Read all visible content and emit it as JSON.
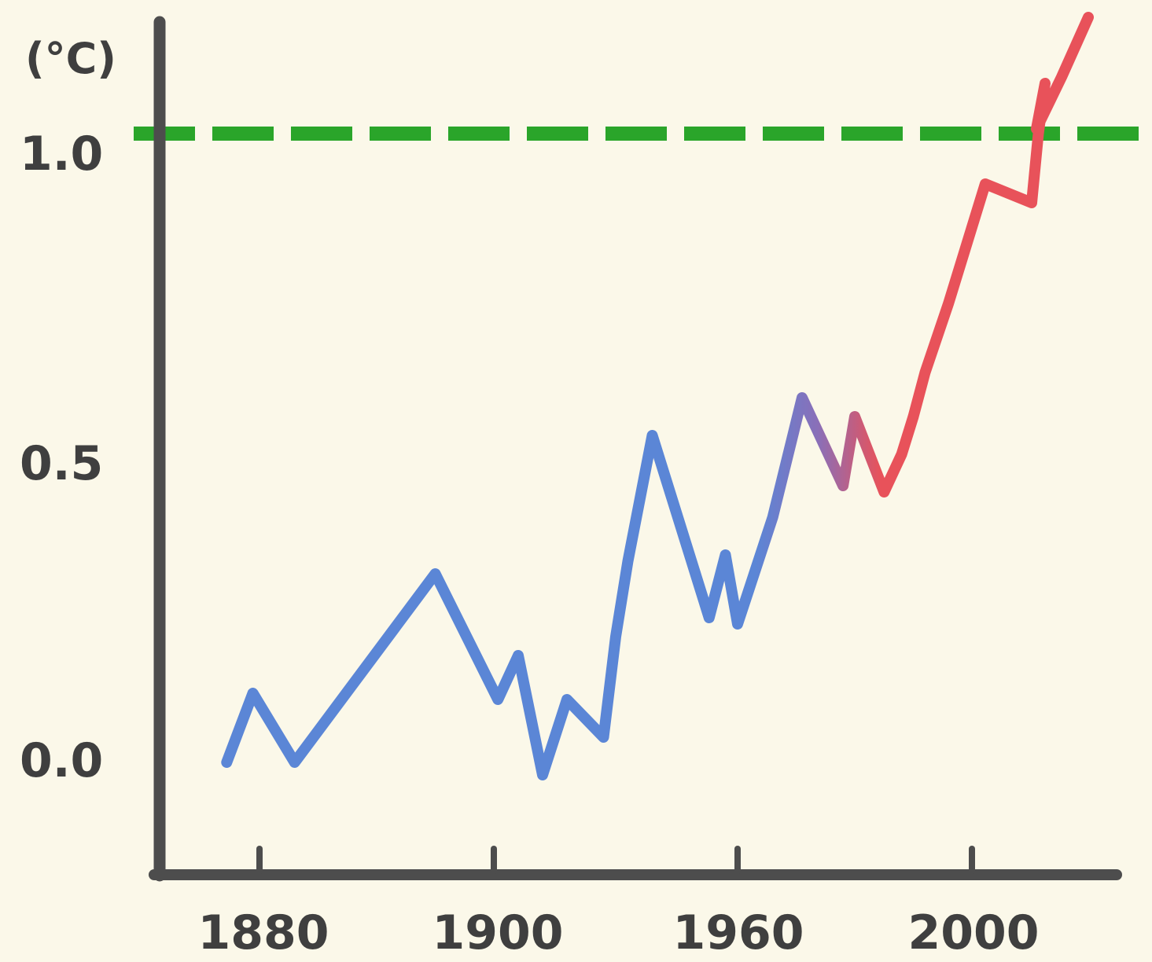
{
  "chart_data": {
    "type": "line",
    "title": "",
    "xlabel": "",
    "ylabel": "(°C)",
    "x_ticks": [
      1880,
      1900,
      1960,
      2000
    ],
    "x_tick_labels": [
      "1880",
      "1900",
      "1960",
      "2000"
    ],
    "y_ticks": [
      0.0,
      0.5,
      1.0
    ],
    "y_tick_labels": [
      "0.0",
      "0.5",
      "1.0"
    ],
    "ylim": [
      -0.17,
      1.2
    ],
    "grid": false,
    "threshold": {
      "value": 1.0,
      "color": "#2aa52a",
      "style": "dashed"
    },
    "series": [
      {
        "color_start": "#5b86d6",
        "color_end": "#e8525a",
        "x": [
          1875,
          1879,
          1883,
          1895,
          1901,
          1906,
          1912,
          1918,
          1927,
          1930,
          1933,
          1939,
          1953,
          1957,
          1960,
          1966,
          1971,
          1978,
          1980,
          1985,
          1988,
          1990,
          1992,
          1996,
          2002,
          2009,
          2010,
          2011,
          2013,
          2015,
          2017
        ],
        "y": [
          0.0,
          0.11,
          0.0,
          0.3,
          0.1,
          0.17,
          -0.02,
          0.1,
          0.04,
          0.2,
          0.32,
          0.52,
          0.23,
          0.33,
          0.22,
          0.39,
          0.58,
          0.44,
          0.55,
          0.43,
          0.49,
          0.55,
          0.62,
          0.73,
          0.92,
          0.89,
          1.0,
          1.08,
          1.15,
          1.15,
          1.15
        ]
      }
    ]
  }
}
